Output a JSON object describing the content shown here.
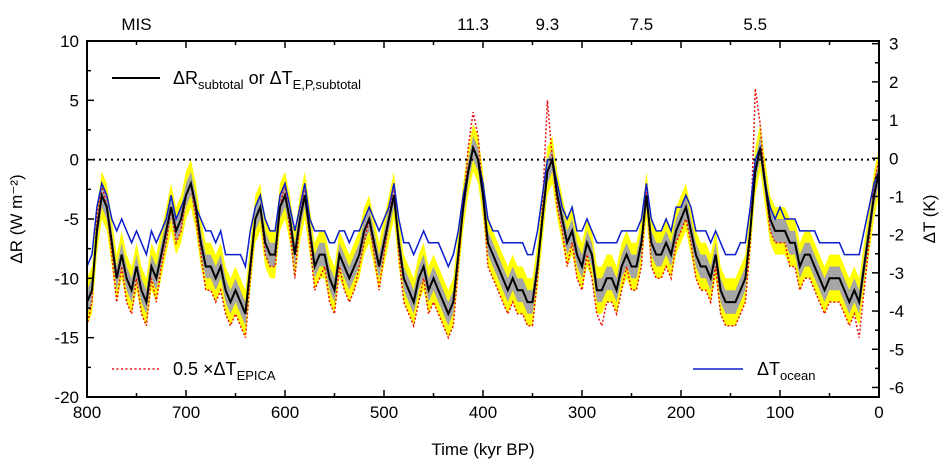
{
  "chart_data": {
    "type": "line",
    "x_axis": {
      "label": "Time (kyr BP)",
      "range": [
        800,
        0
      ],
      "ticks": [
        800,
        700,
        600,
        500,
        400,
        300,
        200,
        100,
        0
      ]
    },
    "y_left": {
      "label": "ΔR (W m⁻²)",
      "range": [
        -20,
        10
      ],
      "ticks": [
        10,
        5,
        0,
        -5,
        -10,
        -15,
        -20
      ]
    },
    "y_right": {
      "label": "ΔT (K)",
      "range": [
        -6.25,
        3.07
      ],
      "ticks": [
        3,
        2,
        1,
        0,
        -1,
        -2,
        -3,
        -4,
        -5,
        -6
      ]
    },
    "zero_reference": {
      "y": 0,
      "style": "dotted"
    },
    "top_labels": [
      {
        "text": "MIS",
        "x": 750
      },
      {
        "text": "11.3",
        "x": 410
      },
      {
        "text": "9.3",
        "x": 335
      },
      {
        "text": "7.5",
        "x": 240
      },
      {
        "text": "5.5",
        "x": 125
      }
    ],
    "legend": {
      "subtotal": {
        "prefix": "ΔR",
        "sub1": "subtotal",
        "middle": " or ΔT",
        "sub2": "E,P,subtotal"
      },
      "epica": {
        "prefix": "0.5 ×ΔT",
        "sub": "EPICA"
      },
      "ocean": {
        "prefix": "ΔT",
        "sub": "ocean"
      }
    },
    "colors": {
      "subtotal": "#000000",
      "uncertainty_inner": "#a6a6a6",
      "uncertainty_outer": "#ffff00",
      "epica": "#ee1111",
      "ocean": "#0a1ecc"
    },
    "series": [
      {
        "key": "subtotal",
        "x": [
          800,
          795,
          790,
          785,
          780,
          775,
          770,
          765,
          760,
          755,
          750,
          745,
          740,
          735,
          730,
          725,
          720,
          715,
          710,
          705,
          700,
          695,
          690,
          685,
          680,
          675,
          670,
          665,
          660,
          655,
          650,
          645,
          640,
          635,
          630,
          625,
          620,
          615,
          610,
          605,
          600,
          595,
          590,
          585,
          580,
          575,
          570,
          565,
          560,
          555,
          550,
          545,
          540,
          535,
          530,
          525,
          520,
          515,
          510,
          505,
          500,
          495,
          490,
          485,
          480,
          475,
          470,
          465,
          460,
          455,
          450,
          445,
          440,
          435,
          430,
          425,
          420,
          415,
          410,
          405,
          400,
          395,
          390,
          385,
          380,
          375,
          370,
          365,
          360,
          355,
          350,
          345,
          340,
          335,
          330,
          325,
          320,
          315,
          310,
          305,
          300,
          295,
          290,
          285,
          280,
          275,
          270,
          265,
          260,
          255,
          250,
          245,
          240,
          235,
          230,
          225,
          220,
          215,
          210,
          205,
          200,
          195,
          190,
          185,
          180,
          175,
          170,
          165,
          160,
          155,
          150,
          145,
          140,
          135,
          130,
          125,
          120,
          115,
          110,
          105,
          100,
          95,
          90,
          85,
          80,
          75,
          70,
          65,
          60,
          55,
          50,
          45,
          40,
          35,
          30,
          25,
          20,
          15,
          10,
          5,
          0
        ],
        "y": [
          -12,
          -11,
          -6,
          -3,
          -4,
          -7,
          -10,
          -8,
          -10,
          -11,
          -9,
          -11,
          -12,
          -9,
          -10,
          -8,
          -6,
          -4,
          -6,
          -5,
          -3,
          -2,
          -4,
          -7,
          -9,
          -9,
          -10,
          -9,
          -11,
          -12,
          -11,
          -12,
          -13,
          -9,
          -5,
          -4,
          -7,
          -8,
          -8,
          -4,
          -3,
          -5,
          -8,
          -5,
          -3,
          -6,
          -9,
          -8,
          -8,
          -10,
          -11,
          -8,
          -9,
          -10,
          -9,
          -8,
          -6,
          -5,
          -7,
          -9,
          -7,
          -5,
          -3,
          -7,
          -10,
          -11,
          -12,
          -10,
          -9,
          -11,
          -10,
          -11,
          -12,
          -13,
          -12,
          -8,
          -4,
          -1,
          1,
          0,
          -3,
          -7,
          -8,
          -9,
          -10,
          -11,
          -10,
          -11,
          -11,
          -12,
          -12,
          -9,
          -5,
          -1,
          0,
          -3,
          -5,
          -7,
          -6,
          -8,
          -9,
          -7,
          -8,
          -11,
          -11,
          -10,
          -10,
          -11,
          -9,
          -8,
          -9,
          -9,
          -7,
          -3,
          -7,
          -8,
          -8,
          -7,
          -8,
          -6,
          -5,
          -4,
          -6,
          -8,
          -9,
          -9,
          -10,
          -8,
          -11,
          -12,
          -12,
          -12,
          -11,
          -10,
          -6,
          -1,
          1,
          -2,
          -5,
          -6,
          -6,
          -6,
          -7,
          -7,
          -9,
          -8,
          -8,
          -9,
          -10,
          -11,
          -10,
          -10,
          -10,
          -11,
          -12,
          -11,
          -12,
          -9,
          -6,
          -3,
          -1
        ]
      },
      {
        "key": "epica",
        "x": [
          800,
          795,
          790,
          785,
          780,
          775,
          770,
          765,
          760,
          755,
          750,
          745,
          740,
          735,
          730,
          725,
          720,
          715,
          710,
          705,
          700,
          695,
          690,
          685,
          680,
          675,
          670,
          665,
          660,
          655,
          650,
          645,
          640,
          635,
          630,
          625,
          620,
          615,
          610,
          605,
          600,
          595,
          590,
          585,
          580,
          575,
          570,
          565,
          560,
          555,
          550,
          545,
          540,
          535,
          530,
          525,
          520,
          515,
          510,
          505,
          500,
          495,
          490,
          485,
          480,
          475,
          470,
          465,
          460,
          455,
          450,
          445,
          440,
          435,
          430,
          425,
          420,
          415,
          410,
          405,
          400,
          395,
          390,
          385,
          380,
          375,
          370,
          365,
          360,
          355,
          350,
          345,
          340,
          335,
          330,
          325,
          320,
          315,
          310,
          305,
          300,
          295,
          290,
          285,
          280,
          275,
          270,
          265,
          260,
          255,
          250,
          245,
          240,
          235,
          230,
          225,
          220,
          215,
          210,
          205,
          200,
          195,
          190,
          185,
          180,
          175,
          170,
          165,
          160,
          155,
          150,
          145,
          140,
          135,
          130,
          125,
          120,
          115,
          110,
          105,
          100,
          95,
          90,
          85,
          80,
          75,
          70,
          65,
          60,
          55,
          50,
          45,
          40,
          35,
          30,
          25,
          20,
          15,
          10,
          5,
          0
        ],
        "y": [
          -14,
          -12,
          -5,
          -2,
          -4,
          -8,
          -12,
          -9,
          -12,
          -13,
          -10,
          -13,
          -14,
          -10,
          -12,
          -9,
          -7,
          -4,
          -7,
          -6,
          -3,
          -2,
          -5,
          -8,
          -11,
          -11,
          -12,
          -11,
          -13,
          -14,
          -13,
          -14,
          -15,
          -10,
          -5,
          -4,
          -8,
          -9,
          -9,
          -4,
          -2,
          -6,
          -10,
          -5,
          -2,
          -7,
          -11,
          -10,
          -9,
          -12,
          -13,
          -9,
          -11,
          -12,
          -11,
          -9,
          -7,
          -5,
          -8,
          -11,
          -8,
          -5,
          -2,
          -8,
          -12,
          -13,
          -14,
          -12,
          -10,
          -13,
          -12,
          -13,
          -14,
          -15,
          -14,
          -9,
          -4,
          1,
          4,
          2,
          -3,
          -9,
          -10,
          -11,
          -12,
          -13,
          -12,
          -13,
          -13,
          -14,
          -14,
          -10,
          -4,
          5,
          0,
          -4,
          -6,
          -9,
          -7,
          -10,
          -11,
          -8,
          -10,
          -13,
          -14,
          -12,
          -12,
          -13,
          -11,
          -9,
          -11,
          -11,
          -9,
          -2,
          -9,
          -10,
          -10,
          -9,
          -10,
          -7,
          -6,
          -5,
          -7,
          -10,
          -11,
          -11,
          -12,
          -9,
          -13,
          -14,
          -14,
          -14,
          -13,
          -12,
          -7,
          6,
          3,
          -2,
          -6,
          -7,
          -7,
          -7,
          -9,
          -9,
          -11,
          -10,
          -10,
          -11,
          -12,
          -13,
          -12,
          -12,
          -12,
          -13,
          -14,
          -13,
          -15,
          -11,
          -7,
          -2,
          0
        ]
      },
      {
        "key": "ocean",
        "x": [
          800,
          795,
          790,
          785,
          780,
          775,
          770,
          765,
          760,
          755,
          750,
          745,
          740,
          735,
          730,
          725,
          720,
          715,
          710,
          705,
          700,
          695,
          690,
          685,
          680,
          675,
          670,
          665,
          660,
          655,
          650,
          645,
          640,
          635,
          630,
          625,
          620,
          615,
          610,
          605,
          600,
          595,
          590,
          585,
          580,
          575,
          570,
          565,
          560,
          555,
          550,
          545,
          540,
          535,
          530,
          525,
          520,
          515,
          510,
          505,
          500,
          495,
          490,
          485,
          480,
          475,
          470,
          465,
          460,
          455,
          450,
          445,
          440,
          435,
          430,
          425,
          420,
          415,
          410,
          405,
          400,
          395,
          390,
          385,
          380,
          375,
          370,
          365,
          360,
          355,
          350,
          345,
          340,
          335,
          330,
          325,
          320,
          315,
          310,
          305,
          300,
          295,
          290,
          285,
          280,
          275,
          270,
          265,
          260,
          255,
          250,
          245,
          240,
          235,
          230,
          225,
          220,
          215,
          210,
          205,
          200,
          195,
          190,
          185,
          180,
          175,
          170,
          165,
          160,
          155,
          150,
          145,
          140,
          135,
          130,
          125,
          120,
          115,
          110,
          105,
          100,
          95,
          90,
          85,
          80,
          75,
          70,
          65,
          60,
          55,
          50,
          45,
          40,
          35,
          30,
          25,
          20,
          15,
          10,
          5,
          0
        ],
        "y": [
          -9,
          -8,
          -4,
          -2,
          -3,
          -5,
          -6,
          -5,
          -6,
          -7,
          -6,
          -7,
          -8,
          -6,
          -7,
          -6,
          -5,
          -3,
          -5,
          -4,
          -3,
          -2,
          -4,
          -5,
          -6,
          -6,
          -7,
          -6,
          -8,
          -8,
          -8,
          -8,
          -9,
          -6,
          -4,
          -3,
          -5,
          -6,
          -6,
          -3,
          -2,
          -4,
          -6,
          -4,
          -2,
          -5,
          -6,
          -6,
          -6,
          -7,
          -7,
          -6,
          -6,
          -7,
          -6,
          -6,
          -5,
          -4,
          -5,
          -6,
          -5,
          -4,
          -2,
          -5,
          -7,
          -7,
          -8,
          -7,
          -6,
          -7,
          -7,
          -7,
          -8,
          -9,
          -8,
          -6,
          -3,
          -1,
          1,
          0,
          -2,
          -5,
          -6,
          -6,
          -7,
          -7,
          -7,
          -7,
          -7,
          -8,
          -8,
          -6,
          -3,
          0,
          0,
          -2,
          -4,
          -5,
          -4,
          -6,
          -6,
          -5,
          -6,
          -7,
          -7,
          -7,
          -7,
          -7,
          -6,
          -6,
          -6,
          -6,
          -5,
          -2,
          -5,
          -6,
          -6,
          -5,
          -6,
          -4,
          -4,
          -3,
          -4,
          -6,
          -6,
          -6,
          -7,
          -6,
          -7,
          -8,
          -8,
          -8,
          -7,
          -7,
          -4,
          0,
          1,
          -2,
          -4,
          -5,
          -4,
          -5,
          -5,
          -5,
          -6,
          -6,
          -6,
          -6,
          -7,
          -7,
          -7,
          -7,
          -7,
          -8,
          -8,
          -8,
          -8,
          -6,
          -4,
          -2,
          -1
        ]
      }
    ],
    "uncertainty": {
      "outer": 2.0,
      "inner": 1.0
    }
  }
}
